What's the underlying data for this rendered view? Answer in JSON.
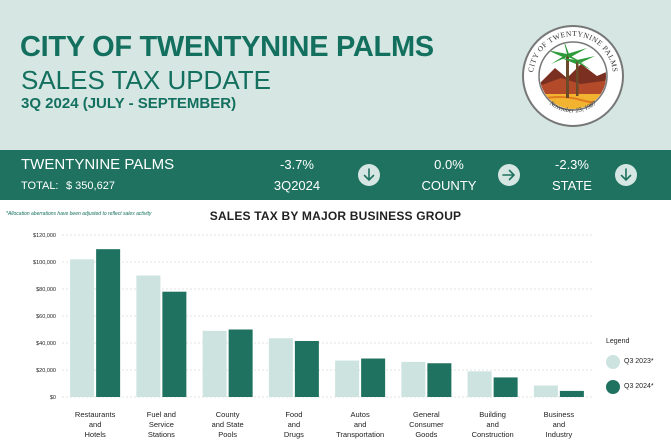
{
  "header": {
    "city_title": "CITY OF TWENTYNINE PALMS",
    "subtitle": "SALES TAX UPDATE",
    "period": "3Q 2024 (JULY - SEPTEMBER)",
    "seal_text_top": "CITY OF TWENTYNINE PALMS",
    "seal_text_bottom": "November 23, 1987"
  },
  "summary": {
    "name": "TWENTYNINE PALMS",
    "total_label": "TOTAL:",
    "total_value": "$ 350,627",
    "stats": [
      {
        "value": "-3.7%",
        "label": "3Q2024",
        "arrow": "down-arrow-icon"
      },
      {
        "value": "0.0%",
        "label": "COUNTY",
        "arrow": "right-arrow-icon"
      },
      {
        "value": "-2.3%",
        "label": "STATE",
        "arrow": "down-arrow-icon"
      }
    ]
  },
  "footnote": "*Allocation aberrations have been adjusted to reflect sales activity",
  "colors": {
    "q3_2023": "#cce3e0",
    "q3_2024": "#1e725f",
    "header_bg": "#d5e6e3",
    "band_bg": "#1e725f"
  },
  "chart_data": {
    "type": "bar",
    "title": "SALES TAX BY MAJOR BUSINESS GROUP",
    "categories": [
      [
        "Restaurants",
        "and",
        "Hotels"
      ],
      [
        "Fuel and",
        "Service",
        "Stations"
      ],
      [
        "County",
        "and State",
        "Pools"
      ],
      [
        "Food",
        "and",
        "Drugs"
      ],
      [
        "Autos",
        "and",
        "Transportation"
      ],
      [
        "General",
        "Consumer",
        "Goods"
      ],
      [
        "Building",
        "and",
        "Construction"
      ],
      [
        "Business",
        "and",
        "Industry"
      ]
    ],
    "series": [
      {
        "name": "Q3 2023*",
        "values": [
          102000,
          90000,
          49000,
          43500,
          27000,
          26000,
          19000,
          8500
        ]
      },
      {
        "name": "Q3 2024*",
        "values": [
          109500,
          78000,
          50000,
          41500,
          28500,
          25000,
          14500,
          4500
        ]
      }
    ],
    "ylim": [
      0,
      120000
    ],
    "yticks": [
      "$0",
      "$20,000",
      "$40,000",
      "$60,000",
      "$80,000",
      "$100,000",
      "$120,000"
    ],
    "grid": true,
    "legend": {
      "title": "Legend",
      "position": "right"
    }
  }
}
